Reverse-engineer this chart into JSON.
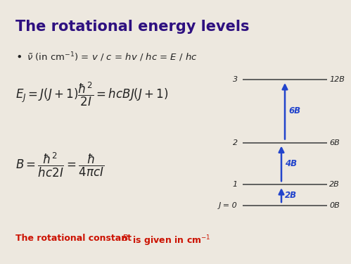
{
  "bg_color": "#ede8df",
  "title": "The rotational energy levels",
  "title_color": "#2e1080",
  "title_fontsize": 15,
  "text_color": "#222222",
  "footer_color": "#cc1100",
  "arrow_color": "#2244cc",
  "line_color": "#555555",
  "level_energies": [
    0,
    2,
    6,
    12
  ],
  "level_labels_left": [
    "J = 0",
    "1",
    "2",
    "3"
  ],
  "level_labels_right": [
    "0B",
    "2B",
    "6B",
    "12B"
  ],
  "arrow_spans": [
    [
      0,
      1,
      "2B"
    ],
    [
      1,
      2,
      "4B"
    ],
    [
      2,
      3,
      "6B"
    ]
  ]
}
